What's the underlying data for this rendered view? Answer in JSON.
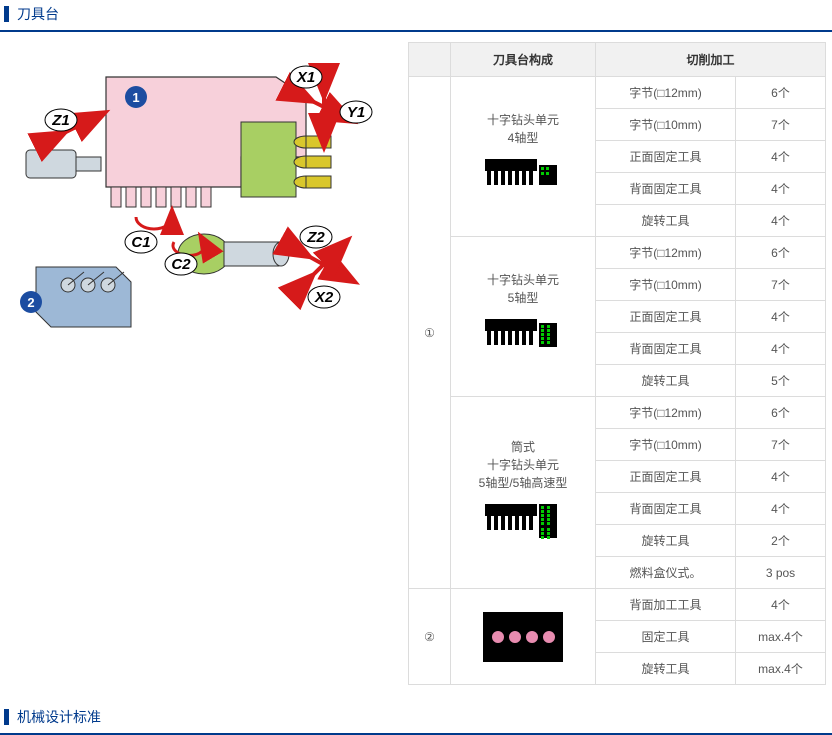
{
  "section1_title": "刀具台",
  "section2_title": "机械设计标准",
  "table": {
    "header_col1": "刀具台构成",
    "header_col2": "切削加工",
    "groups": [
      {
        "index": "①",
        "subgroups": [
          {
            "config_line1": "十字钻头单元",
            "config_line2": "4轴型",
            "icon": "drill4",
            "rows": [
              {
                "label": "字节(□12mm)",
                "value": "6个"
              },
              {
                "label": "字节(□10mm)",
                "value": "7个"
              },
              {
                "label": "正面固定工具",
                "value": "4个"
              },
              {
                "label": "背面固定工具",
                "value": "4个"
              },
              {
                "label": "旋转工具",
                "value": "4个"
              }
            ]
          },
          {
            "config_line1": "十字钻头单元",
            "config_line2": "5轴型",
            "icon": "drill5",
            "rows": [
              {
                "label": "字节(□12mm)",
                "value": "6个"
              },
              {
                "label": "字节(□10mm)",
                "value": "7个"
              },
              {
                "label": "正面固定工具",
                "value": "4个"
              },
              {
                "label": "背面固定工具",
                "value": "4个"
              },
              {
                "label": "旋转工具",
                "value": "5个"
              }
            ]
          },
          {
            "config_line1": "筒式",
            "config_line2": "十字钻头单元",
            "config_line3": "5轴型/5轴高速型",
            "icon": "drill5s",
            "rows": [
              {
                "label": "字节(□12mm)",
                "value": "6个"
              },
              {
                "label": "字节(□10mm)",
                "value": "7个"
              },
              {
                "label": "正面固定工具",
                "value": "4个"
              },
              {
                "label": "背面固定工具",
                "value": "4个"
              },
              {
                "label": "旋转工具",
                "value": "2个"
              },
              {
                "label": "燃料盒仪式。",
                "value": "3 pos"
              }
            ]
          }
        ]
      },
      {
        "index": "②",
        "subgroups": [
          {
            "icon": "dots",
            "rows": [
              {
                "label": "背面加工工具",
                "value": "4个"
              },
              {
                "label": "固定工具",
                "value": "max.4个"
              },
              {
                "label": "旋转工具",
                "value": "max.4个"
              }
            ]
          }
        ]
      }
    ]
  },
  "diagram_labels": {
    "n1": "1",
    "n2": "2",
    "z1": "Z1",
    "x1": "X1",
    "y1": "Y1",
    "c1": "C1",
    "c2": "C2",
    "z2": "Z2",
    "x2": "X2"
  },
  "colors": {
    "accent": "#003a8c",
    "arrow": "#d61a1a",
    "pink": "#f5b6c9",
    "yellow": "#d4c641",
    "green": "#8bb84a",
    "steel": "#8aa6b8"
  }
}
